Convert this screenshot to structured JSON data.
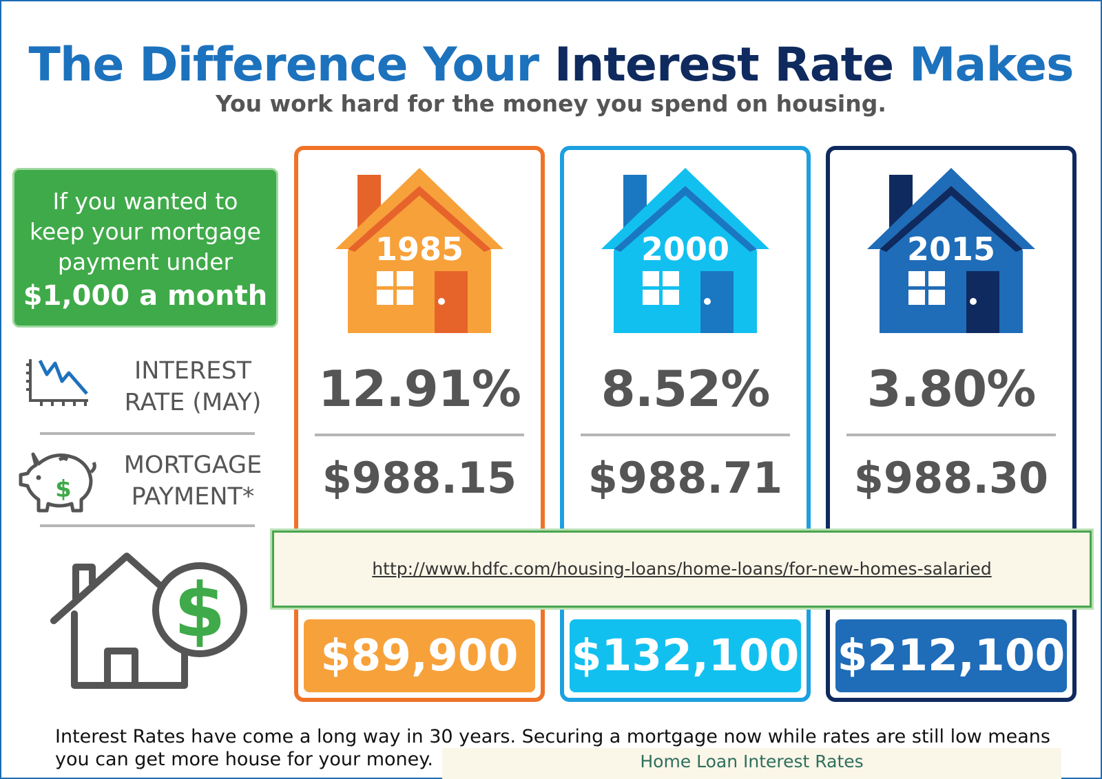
{
  "title": {
    "part1": "The Difference Your ",
    "part2": "Interest Rate",
    "part3": " Makes"
  },
  "subtitle": "You work hard for the money you spend on housing.",
  "callout": {
    "lines": [
      "If you wanted to",
      "keep your mortgage",
      "payment under"
    ],
    "emphasis": "$1,000 a month"
  },
  "rows": {
    "interest": [
      "INTEREST",
      "RATE (MAY)"
    ],
    "mortgage": [
      "MORTGAGE",
      "PAYMENT*"
    ]
  },
  "columns": [
    {
      "year": "1985",
      "rate": "12.91%",
      "payment": "$988.15",
      "price": "$89,900"
    },
    {
      "year": "2000",
      "rate": "8.52%",
      "payment": "$988.71",
      "price": "$132,100"
    },
    {
      "year": "2015",
      "rate": "3.80%",
      "payment": "$988.30",
      "price": "$212,100"
    }
  ],
  "link": "http://www.hdfc.com/housing-loans/home-loans/for-new-homes-salaried",
  "footer": "Interest Rates have come a long way in 30 years. Securing a mortgage now while rates are still low means you can get more house for your money.",
  "tag": "Home Loan Interest Rates",
  "colors": {
    "orange": "#ef7327",
    "orange_light": "#f7a13a",
    "orange_dark": "#e6642a",
    "cyan": "#1ca0df",
    "cyan_light": "#12c0f0",
    "cyan_dark": "#1a78c2",
    "navy": "#0f2a5e",
    "navy_mid": "#1f6cb8",
    "green": "#3faa49"
  },
  "icons": [
    "chart-down-icon",
    "piggy-bank-icon",
    "house-dollar-icon",
    "house-icon"
  ]
}
